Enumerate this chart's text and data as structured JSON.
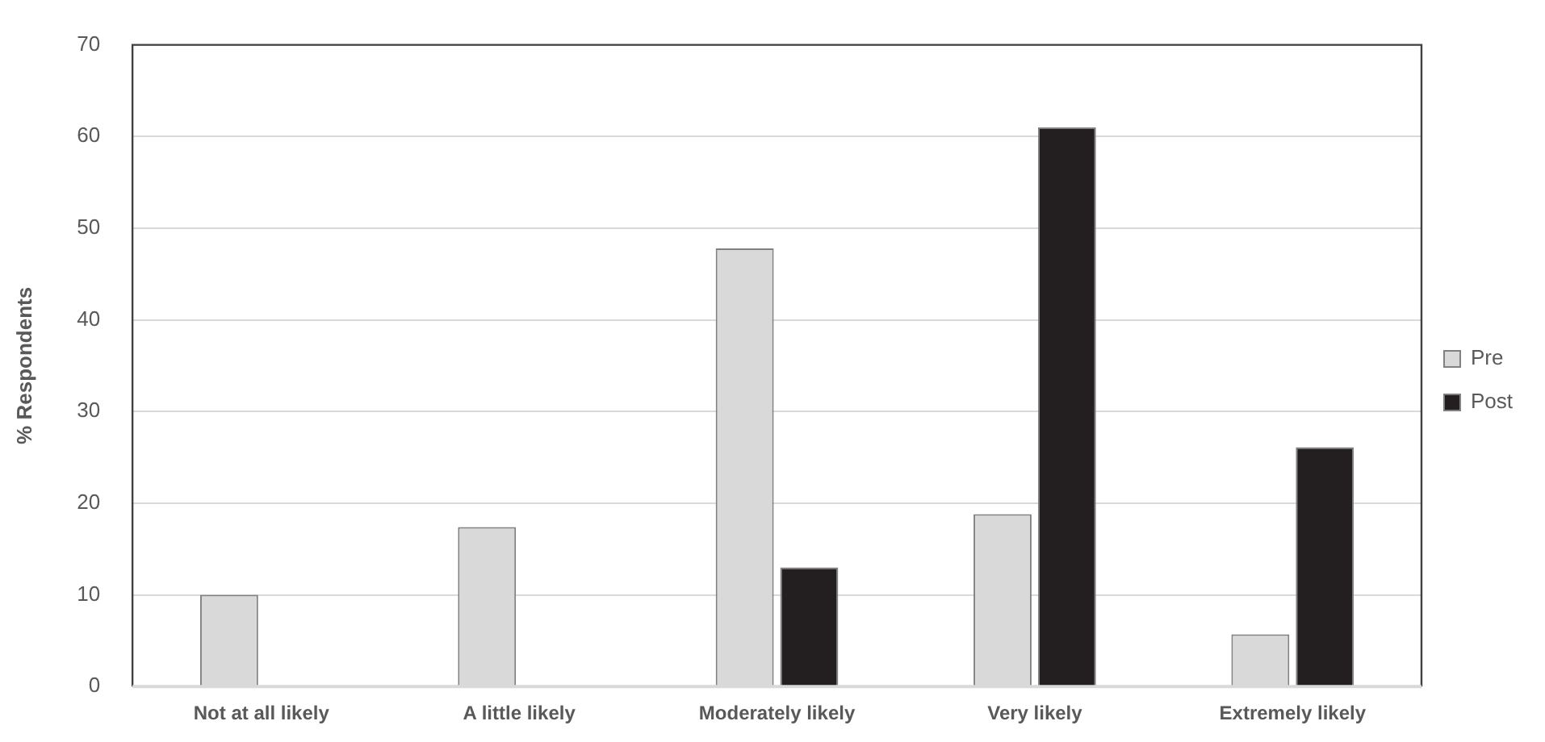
{
  "chart_data": {
    "type": "bar",
    "ylabel": "% Respondents",
    "categories": [
      "Not at all likely",
      "A little likely",
      "Moderately likely",
      "Very likely",
      "Extremely likely"
    ],
    "series": [
      {
        "name": "Pre",
        "color": "#d9d9d9",
        "values": [
          10,
          17.4,
          47.8,
          18.8,
          5.7
        ]
      },
      {
        "name": "Post",
        "color": "#231f20",
        "values": [
          0,
          0,
          13,
          61,
          26.1
        ]
      }
    ],
    "ylim": [
      0,
      70
    ],
    "yticks": [
      0,
      10,
      20,
      30,
      40,
      50,
      60,
      70
    ],
    "grid": "y",
    "legend": "right"
  }
}
